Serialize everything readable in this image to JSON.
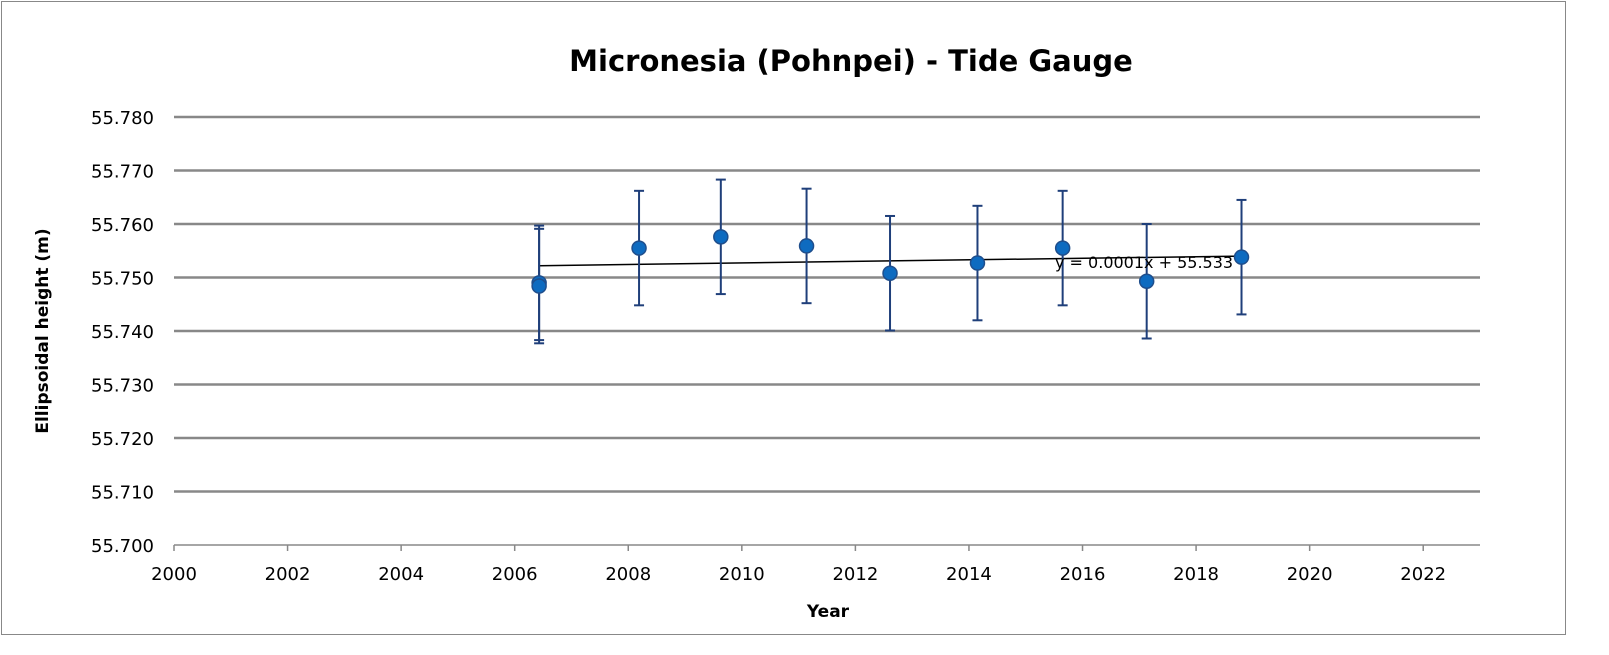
{
  "chart_data": {
    "type": "scatter",
    "title": "Micronesia (Pohnpei)  - Tide Gauge",
    "xlabel": "Year",
    "ylabel": "Ellipsoidal height (m)",
    "xlim": [
      2000,
      2023
    ],
    "ylim": [
      55.7,
      55.78
    ],
    "x_ticks": [
      2000,
      2002,
      2004,
      2006,
      2008,
      2010,
      2012,
      2014,
      2016,
      2018,
      2020,
      2022
    ],
    "y_ticks": [
      "55.700",
      "55.710",
      "55.720",
      "55.730",
      "55.740",
      "55.750",
      "55.760",
      "55.770",
      "55.780"
    ],
    "grid": "horizontal",
    "legend": "none",
    "marker_color": "#0E6BC0",
    "error_bar_color": "#1F3F7A",
    "points": [
      {
        "x": 2006.43,
        "y": 55.749,
        "err": 0.0107
      },
      {
        "x": 2006.43,
        "y": 55.7484,
        "err": 0.0107
      },
      {
        "x": 2008.19,
        "y": 55.7555,
        "err": 0.0107
      },
      {
        "x": 2009.63,
        "y": 55.7576,
        "err": 0.0107
      },
      {
        "x": 2011.14,
        "y": 55.7559,
        "err": 0.0107
      },
      {
        "x": 2012.61,
        "y": 55.7508,
        "err": 0.0107
      },
      {
        "x": 2014.15,
        "y": 55.7527,
        "err": 0.0107
      },
      {
        "x": 2015.65,
        "y": 55.7555,
        "err": 0.0107
      },
      {
        "x": 2017.13,
        "y": 55.7493,
        "err": 0.0107
      },
      {
        "x": 2018.8,
        "y": 55.7538,
        "err": 0.0107
      }
    ],
    "trendline": {
      "type": "linear",
      "start": {
        "x": 2006.43,
        "y": 55.7522
      },
      "end": {
        "x": 2018.8,
        "y": 55.754
      },
      "equation": "y = 0.0001x + 55.533"
    }
  }
}
